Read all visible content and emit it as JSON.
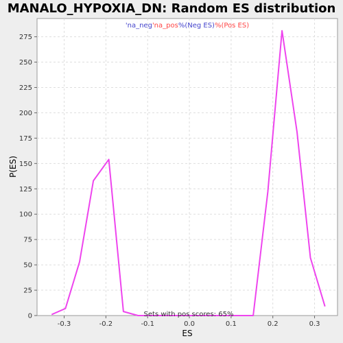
{
  "chart_data": {
    "type": "line",
    "title": "MANALO_HYPOXIA_DN: Random ES distribution",
    "xlabel": "ES",
    "ylabel": "P(ES)",
    "xlim": [
      -0.365,
      0.355
    ],
    "ylim": [
      0,
      293
    ],
    "x_ticks": [
      -0.3,
      -0.2,
      -0.1,
      0.0,
      0.1,
      0.2,
      0.3
    ],
    "x_tick_labels": [
      "-0.3",
      "-0.2",
      "-0.1",
      "0.0",
      "0.1",
      "0.2",
      "0.3"
    ],
    "y_ticks": [
      0,
      25,
      50,
      75,
      100,
      125,
      150,
      175,
      200,
      225,
      250,
      275
    ],
    "y_tick_labels": [
      "0",
      "25",
      "50",
      "75",
      "100",
      "125",
      "150",
      "175",
      "200",
      "225",
      "250",
      "275"
    ],
    "grid": true,
    "legend_position": "top-center",
    "legend_texts": [
      {
        "text": "'na_neg",
        "color": "#4444cc"
      },
      {
        "text": "'na_pos",
        "color": "#ff4444"
      },
      {
        "text": "%(Neg ES)",
        "color": "#4444cc"
      },
      {
        "text": "%(Pos ES)",
        "color": "#ff4444"
      }
    ],
    "annotation": "Sets with pos scores: 65%",
    "series": [
      {
        "color": "#ee44ee",
        "x": [
          -0.33,
          -0.297,
          -0.263,
          -0.23,
          -0.193,
          -0.158,
          -0.123,
          -0.088,
          -0.052,
          -0.017,
          0.018,
          0.053,
          0.088,
          0.123,
          0.153,
          0.188,
          0.222,
          0.258,
          0.29,
          0.325
        ],
        "y": [
          1,
          7,
          53,
          133,
          154,
          4,
          0,
          0,
          0,
          0,
          0,
          0,
          0,
          0,
          0,
          122,
          281,
          181,
          57,
          9
        ]
      }
    ]
  }
}
